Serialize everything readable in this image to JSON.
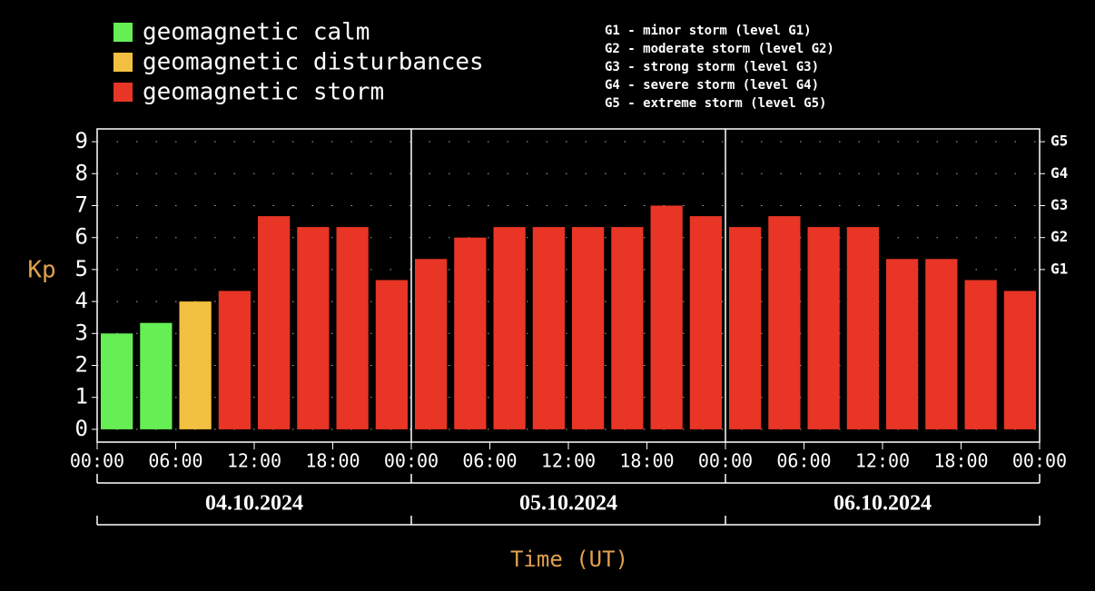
{
  "chart_data": {
    "type": "bar",
    "legend": [
      {
        "name": "geomagnetic calm",
        "color": "#66ee55"
      },
      {
        "name": "geomagnetic disturbances",
        "color": "#f2c040"
      },
      {
        "name": "geomagnetic storm",
        "color": "#e83525"
      }
    ],
    "storm_levels": [
      "G1 - minor storm (level G1)",
      "G2 - moderate storm (level G2)",
      "G3 - strong storm (level G3)",
      "G4 - severe storm (level G4)",
      "G5 - extreme storm (level G5)"
    ],
    "y_label": "Kp",
    "x_label": "Time (UT)",
    "x": [
      0,
      3,
      6,
      9,
      12,
      15,
      18,
      21,
      24,
      27,
      30,
      33,
      36,
      39,
      42,
      45,
      48,
      51,
      54,
      57,
      60,
      63,
      66,
      69
    ],
    "values": [
      3.0,
      3.33,
      4.0,
      4.33,
      6.67,
      6.33,
      6.33,
      4.67,
      5.33,
      6.0,
      6.33,
      6.33,
      6.33,
      6.33,
      7.0,
      6.67,
      6.33,
      6.67,
      6.33,
      6.33,
      5.33,
      5.33,
      4.67,
      4.33
    ],
    "colors": [
      "#66ee55",
      "#66ee55",
      "#f2c040",
      "#e83525",
      "#e83525",
      "#e83525",
      "#e83525",
      "#e83525",
      "#e83525",
      "#e83525",
      "#e83525",
      "#e83525",
      "#e83525",
      "#e83525",
      "#e83525",
      "#e83525",
      "#e83525",
      "#e83525",
      "#e83525",
      "#e83525",
      "#e83525",
      "#e83525",
      "#e83525",
      "#e83525"
    ],
    "xlim": [
      0,
      72
    ],
    "xticks": [
      {
        "value": 0,
        "label": "00:00"
      },
      {
        "value": 6,
        "label": "06:00"
      },
      {
        "value": 12,
        "label": "12:00"
      },
      {
        "value": 18,
        "label": "18:00"
      },
      {
        "value": 24,
        "label": "00:00"
      },
      {
        "value": 30,
        "label": "06:00"
      },
      {
        "value": 36,
        "label": "12:00"
      },
      {
        "value": 42,
        "label": "18:00"
      },
      {
        "value": 48,
        "label": "00:00"
      },
      {
        "value": 54,
        "label": "06:00"
      },
      {
        "value": 60,
        "label": "12:00"
      },
      {
        "value": 66,
        "label": "18:00"
      },
      {
        "value": 72,
        "label": "00:00"
      }
    ],
    "days": [
      "04.10.2024",
      "05.10.2024",
      "06.10.2024"
    ],
    "ylim": [
      -0.4,
      9.4
    ],
    "yticks": [
      0,
      1,
      2,
      3,
      4,
      5,
      6,
      7,
      8,
      9
    ],
    "y2ticks": [
      {
        "value": 5,
        "label": "G1"
      },
      {
        "value": 6,
        "label": "G2"
      },
      {
        "value": 7,
        "label": "G3"
      },
      {
        "value": 8,
        "label": "G4"
      },
      {
        "value": 9,
        "label": "G5"
      }
    ],
    "grid": true
  }
}
